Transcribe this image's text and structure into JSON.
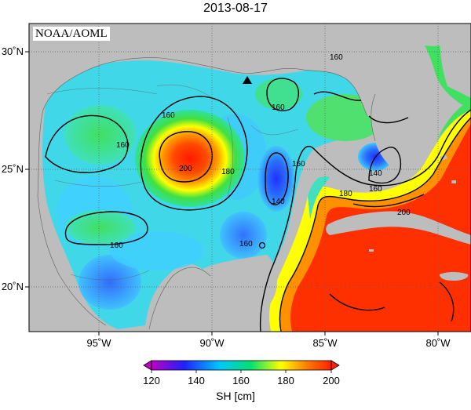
{
  "title": "2013-08-17",
  "credit": "NOAA/AOML",
  "colorbar": {
    "unit_label": "SH [cm]",
    "ticks": [
      "120",
      "140",
      "160",
      "180",
      "200"
    ],
    "min": 120,
    "max": 200,
    "colors": [
      "#c000c0",
      "#2020ff",
      "#00c8ff",
      "#00e070",
      "#ffff00",
      "#ff8000",
      "#ff2000"
    ]
  },
  "axes": {
    "x_ticks": [
      "95˚W",
      "90˚W",
      "85˚W",
      "80˚W"
    ],
    "y_ticks": [
      "30˚N",
      "25˚N",
      "20˚N"
    ]
  },
  "contour_labels": [
    "160",
    "160",
    "160",
    "160",
    "160",
    "160",
    "180",
    "200",
    "140",
    "160",
    "140",
    "180",
    "160",
    "200"
  ],
  "marker": "triangle"
}
